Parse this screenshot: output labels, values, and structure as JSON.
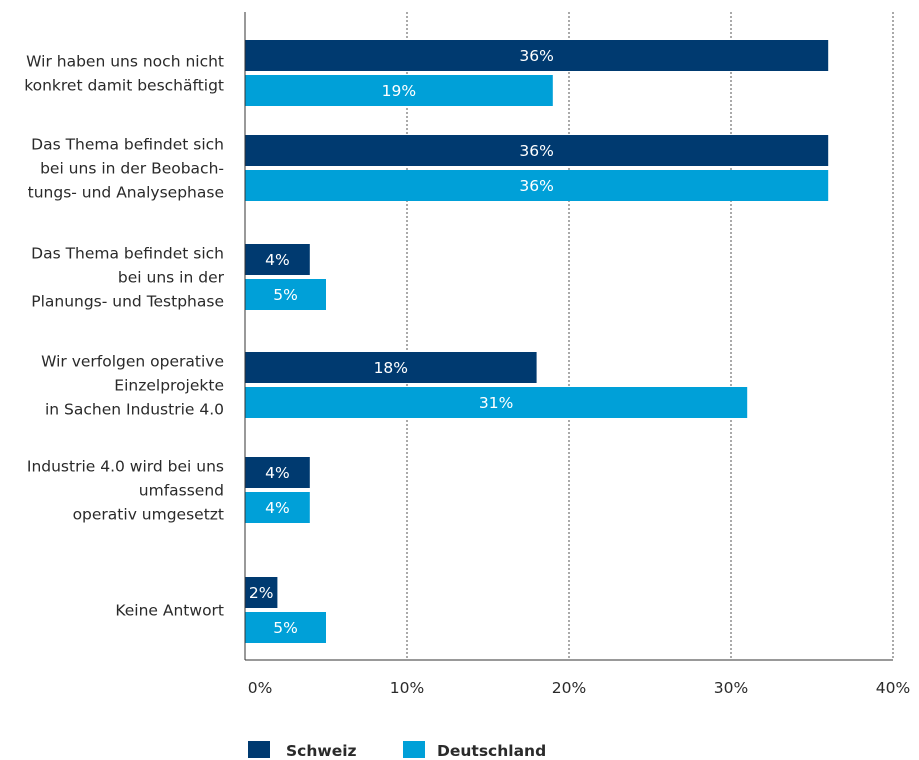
{
  "chart_data": {
    "type": "bar",
    "orientation": "horizontal",
    "categories": [
      [
        "Wir haben uns noch nicht",
        "konkret damit beschäftigt"
      ],
      [
        "Das Thema befindet sich",
        "bei uns in der Beobach-",
        "tungs- und Analysephase"
      ],
      [
        "Das Thema befindet sich",
        "bei uns in der",
        "Planungs- und Testphase"
      ],
      [
        "Wir verfolgen operative",
        "Einzelprojekte",
        "in Sachen Industrie 4.0"
      ],
      [
        "Industrie 4.0 wird bei uns",
        "umfassend",
        "operativ umgesetzt"
      ],
      [
        "Keine Antwort"
      ]
    ],
    "series": [
      {
        "name": "Schweiz",
        "color": "#003a70",
        "values": [
          36,
          36,
          4,
          18,
          4,
          2
        ],
        "labels": [
          "36%",
          "36%",
          "4%",
          "18%",
          "4%",
          "2%"
        ]
      },
      {
        "name": "Deutschland",
        "color": "#00a0d8",
        "values": [
          19,
          36,
          5,
          31,
          4,
          5
        ],
        "labels": [
          "19%",
          "36%",
          "5%",
          "31%",
          "4%",
          "5%"
        ]
      }
    ],
    "xlim": [
      0,
      40
    ],
    "xticks": [
      0,
      10,
      20,
      30,
      40
    ],
    "xtick_labels": [
      "0%",
      "10%",
      "20%",
      "30%",
      "40%"
    ],
    "grid": "vertical dashed",
    "legend": "bottom"
  }
}
